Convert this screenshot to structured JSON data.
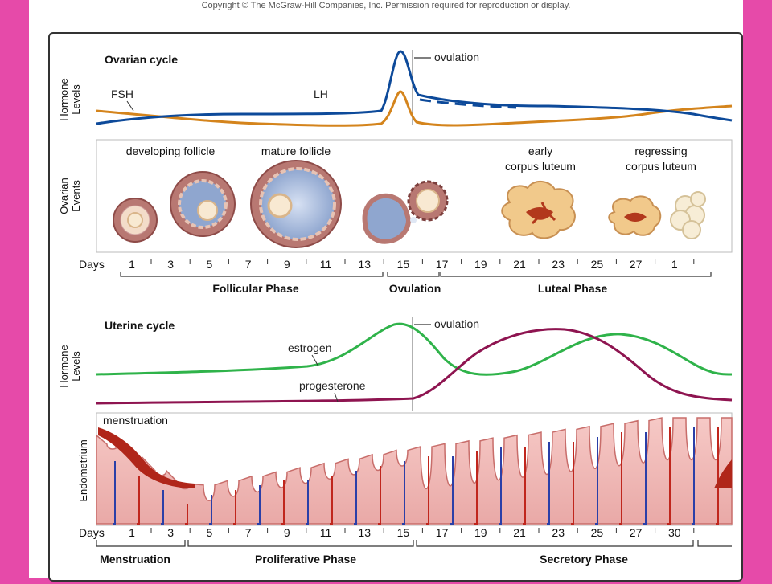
{
  "copyright": "Copyright © The McGraw-Hill Companies, Inc. Permission required for reproduction or display.",
  "ovarian": {
    "title": "Ovarian cycle",
    "hormone_axis": "Hormone Levels",
    "events_axis": "Ovarian Events",
    "ovulation_label": "ovulation",
    "fsh_label": "FSH",
    "lh_label": "LH",
    "fsh_color": "#0d4a9a",
    "lh_color": "#d4841c",
    "stage_labels": {
      "developing": "developing follicle",
      "mature": "mature follicle",
      "early_cl_1": "early",
      "early_cl_2": "corpus luteum",
      "regress_1": "regressing",
      "regress_2": "corpus luteum"
    },
    "days_label": "Days",
    "days": [
      "1",
      "3",
      "5",
      "7",
      "9",
      "11",
      "13",
      "15",
      "17",
      "19",
      "21",
      "23",
      "25",
      "27",
      "1"
    ],
    "phases": {
      "follicular": "Follicular Phase",
      "ovulation": "Ovulation",
      "luteal": "Luteal Phase"
    }
  },
  "uterine": {
    "title": "Uterine cycle",
    "hormone_axis": "Hormone Levels",
    "endometrium_axis": "Endometrium",
    "ovulation_label": "ovulation",
    "estrogen_label": "estrogen",
    "progesterone_label": "progesterone",
    "estrogen_color": "#2fb34a",
    "progesterone_color": "#8e1450",
    "menstruation_label": "menstruation",
    "days_label": "Days",
    "days": [
      "1",
      "3",
      "5",
      "7",
      "9",
      "11",
      "13",
      "15",
      "17",
      "19",
      "21",
      "23",
      "25",
      "27",
      "30"
    ],
    "phases": {
      "menstruation": "Menstruation",
      "proliferative": "Proliferative Phase",
      "secretory": "Secretory Phase"
    }
  }
}
